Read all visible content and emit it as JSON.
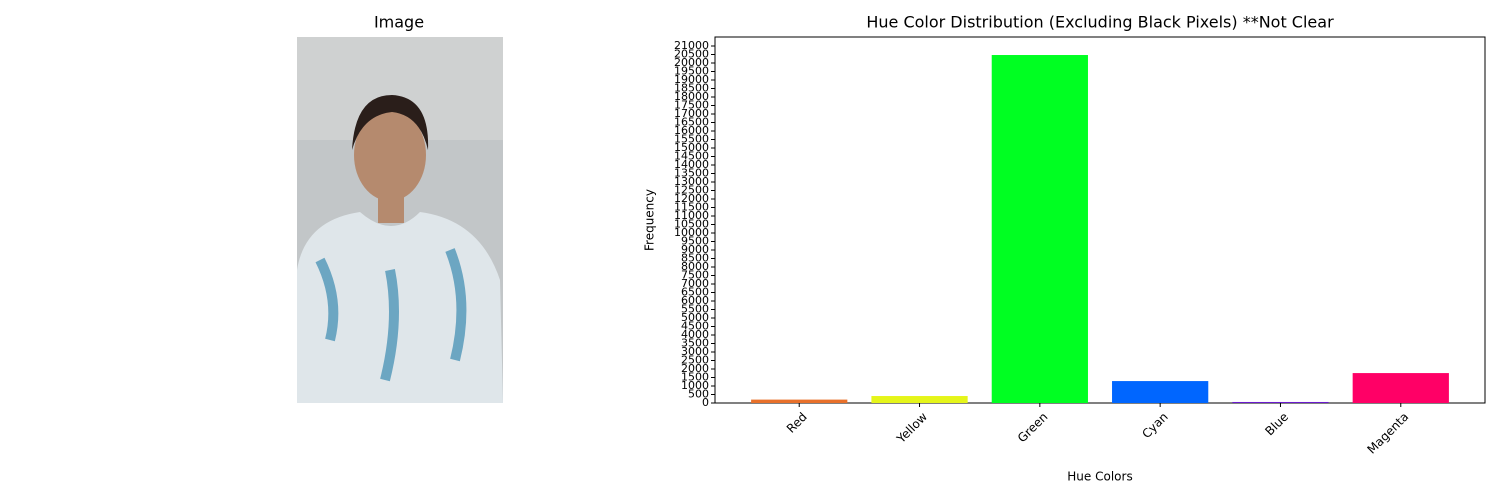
{
  "image_panel": {
    "title": "Image"
  },
  "chart_data": {
    "type": "bar",
    "title": "Hue Color Distribution (Excluding Black Pixels) **Not Clear",
    "x_label": "Hue Colors",
    "y_label": "Frequency",
    "categories": [
      "Red",
      "Yellow",
      "Green",
      "Cyan",
      "Blue",
      "Magenta"
    ],
    "values": [
      200,
      410,
      20470,
      1290,
      60,
      1760
    ],
    "colors": [
      "#e8702a",
      "#e5f51a",
      "#00ff22",
      "#0066ff",
      "#6a1acd",
      "#ff0066"
    ],
    "ylim": [
      0,
      21530
    ],
    "yticks": [
      0,
      500,
      1000,
      1500,
      2000,
      2500,
      3000,
      3500,
      4000,
      4500,
      5000,
      5500,
      6000,
      6500,
      7000,
      7500,
      8000,
      8500,
      9000,
      9500,
      10000,
      10500,
      11000,
      11500,
      12000,
      12500,
      13000,
      13500,
      14000,
      14500,
      15000,
      15500,
      16000,
      16500,
      17000,
      17500,
      18000,
      18500,
      19000,
      19500,
      20000,
      20500,
      21000
    ],
    "grid": false
  }
}
